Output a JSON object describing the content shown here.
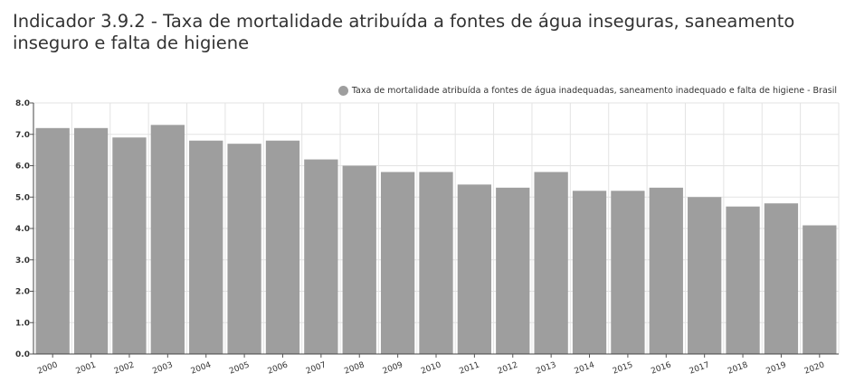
{
  "title": "Indicador 3.9.2 - Taxa de mortalidade atribuída a fontes de água inseguras, saneamento inseguro e falta de higiene",
  "legend": {
    "entries": [
      "Taxa de mortalidade atribuída a fontes de água inadequadas, saneamento inadequado e falta de higiene - Brasil"
    ],
    "placement": "top-right"
  },
  "chart_data": {
    "type": "bar",
    "categories": [
      "2000",
      "2001",
      "2002",
      "2003",
      "2004",
      "2005",
      "2006",
      "2007",
      "2008",
      "2009",
      "2010",
      "2011",
      "2012",
      "2013",
      "2014",
      "2015",
      "2016",
      "2017",
      "2018",
      "2019",
      "2020"
    ],
    "series": [
      {
        "name": "Taxa de mortalidade atribuída a fontes de água inadequadas, saneamento inadequado e falta de higiene - Brasil",
        "values": [
          7.2,
          7.2,
          6.9,
          7.3,
          6.8,
          6.7,
          6.8,
          6.2,
          6.0,
          5.8,
          5.8,
          5.4,
          5.3,
          5.8,
          5.2,
          5.2,
          5.3,
          5.0,
          4.7,
          4.8,
          4.1
        ],
        "color": "#9e9e9e"
      }
    ],
    "yticks": [
      "0.0",
      "1.0",
      "2.0",
      "3.0",
      "4.0",
      "5.0",
      "6.0",
      "7.0",
      "8.0"
    ],
    "ylim": [
      0,
      8
    ],
    "grid": true,
    "title": "Indicador 3.9.2 - Taxa de mortalidade atribuída a fontes de água inseguras, saneamento inseguro e falta de higiene",
    "xlabel": "",
    "ylabel": ""
  }
}
